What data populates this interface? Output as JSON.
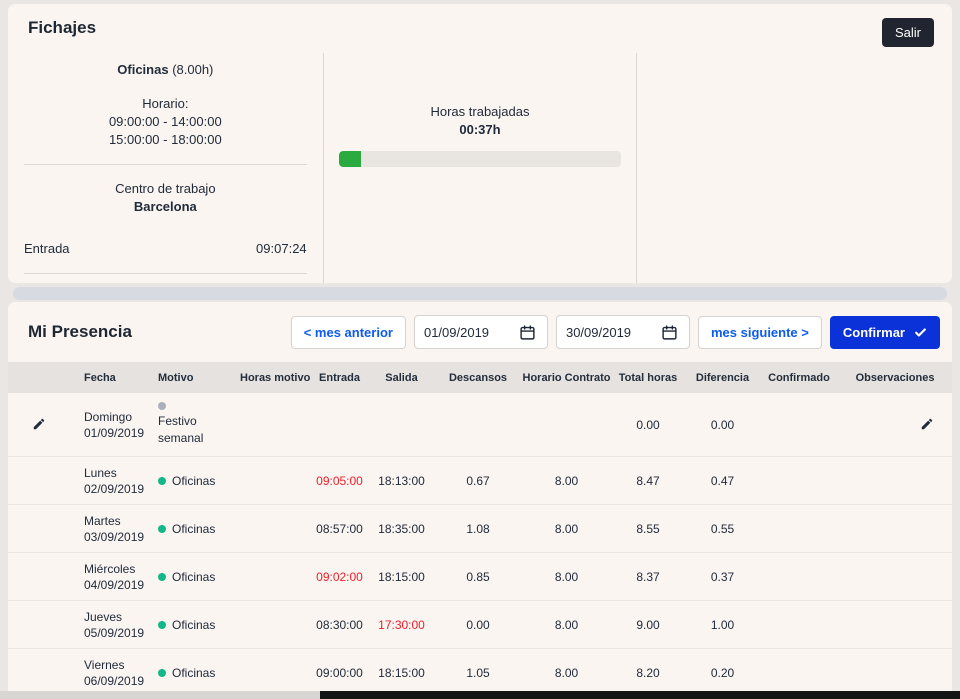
{
  "colors": {
    "accent_blue": "#0d5bf0",
    "confirm_blue": "#0b32d8",
    "alert_red": "#ef1d28",
    "progress_green": "#2aaa3f",
    "motivo_active_green": "#12b886",
    "motivo_inactive_gray": "#aab0bb",
    "dark_navy": "#212b3a"
  },
  "header": {
    "title": "Fichajes",
    "logout_label": "Salir"
  },
  "clock_card": {
    "schedule_name": "Oficinas",
    "schedule_hours": "(8.00h)",
    "schedule_label": "Horario:",
    "schedule_morning": "09:00:00 - 14:00:00",
    "schedule_afternoon": "15:00:00 - 18:00:00",
    "workcenter_label": "Centro de trabajo",
    "workcenter_value": "Barcelona",
    "entry_label": "Entrada",
    "entry_time": "09:07:24",
    "worked_label": "Horas trabajadas",
    "worked_value": "00:37h",
    "worked_progress_pct": 8
  },
  "presence": {
    "title": "Mi Presencia",
    "controls": {
      "prev_month_label": "< mes anterior",
      "date_from": "01/09/2019",
      "date_to": "30/09/2019",
      "next_month_label": "mes siguiente >",
      "confirm_label": "Confirmar"
    },
    "table": {
      "headers": [
        "Fecha",
        "Motivo",
        "Horas motivo",
        "Entrada",
        "Salida",
        "Descansos",
        "Horario Contrato",
        "Total horas",
        "Diferencia",
        "Confirmado",
        "Observaciones"
      ],
      "rows": [
        {
          "day": "Domingo",
          "date": "01/09/2019",
          "motivo": "Festivo semanal",
          "motivo_status": "inactive",
          "motivo_stacked": true,
          "entrada": "",
          "entrada_alert": false,
          "salida": "",
          "salida_alert": false,
          "descansos": "",
          "horario_contrato": "",
          "total_horas": "0.00",
          "diferencia": "0.00",
          "confirmado": "",
          "observaciones": "",
          "editable": true
        },
        {
          "day": "Lunes",
          "date": "02/09/2019",
          "motivo": "Oficinas",
          "motivo_status": "active",
          "motivo_stacked": false,
          "entrada": "09:05:00",
          "entrada_alert": true,
          "salida": "18:13:00",
          "salida_alert": false,
          "descansos": "0.67",
          "horario_contrato": "8.00",
          "total_horas": "8.47",
          "diferencia": "0.47",
          "confirmado": "",
          "observaciones": "",
          "editable": false
        },
        {
          "day": "Martes",
          "date": "03/09/2019",
          "motivo": "Oficinas",
          "motivo_status": "active",
          "motivo_stacked": false,
          "entrada": "08:57:00",
          "entrada_alert": false,
          "salida": "18:35:00",
          "salida_alert": false,
          "descansos": "1.08",
          "horario_contrato": "8.00",
          "total_horas": "8.55",
          "diferencia": "0.55",
          "confirmado": "",
          "observaciones": "",
          "editable": false
        },
        {
          "day": "Miércoles",
          "date": "04/09/2019",
          "motivo": "Oficinas",
          "motivo_status": "active",
          "motivo_stacked": false,
          "entrada": "09:02:00",
          "entrada_alert": true,
          "salida": "18:15:00",
          "salida_alert": false,
          "descansos": "0.85",
          "horario_contrato": "8.00",
          "total_horas": "8.37",
          "diferencia": "0.37",
          "confirmado": "",
          "observaciones": "",
          "editable": false
        },
        {
          "day": "Jueves",
          "date": "05/09/2019",
          "motivo": "Oficinas",
          "motivo_status": "active",
          "motivo_stacked": false,
          "entrada": "08:30:00",
          "entrada_alert": false,
          "salida": "17:30:00",
          "salida_alert": true,
          "descansos": "0.00",
          "horario_contrato": "8.00",
          "total_horas": "9.00",
          "diferencia": "1.00",
          "confirmado": "",
          "observaciones": "",
          "editable": false
        },
        {
          "day": "Viernes",
          "date": "06/09/2019",
          "motivo": "Oficinas",
          "motivo_status": "active",
          "motivo_stacked": false,
          "entrada": "09:00:00",
          "entrada_alert": false,
          "salida": "18:15:00",
          "salida_alert": false,
          "descansos": "1.05",
          "horario_contrato": "8.00",
          "total_horas": "8.20",
          "diferencia": "0.20",
          "confirmado": "",
          "observaciones": "",
          "editable": false
        }
      ]
    }
  }
}
